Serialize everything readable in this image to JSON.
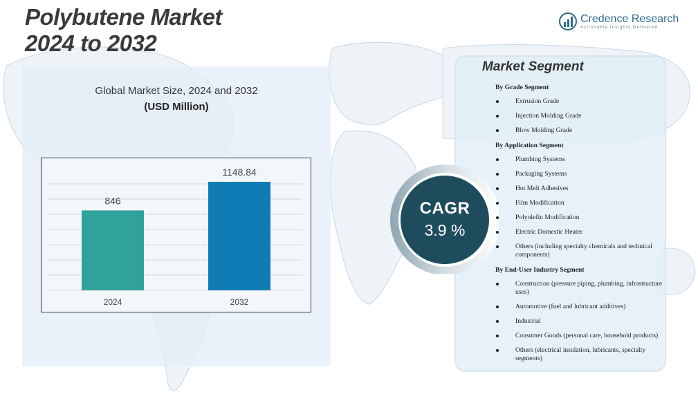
{
  "title": {
    "line1": "Polybutene Market",
    "line2": "2024 to 2032"
  },
  "brand": {
    "name": "Credence Research",
    "tagline": "Actionable Insights Delivered"
  },
  "chart_data": {
    "type": "bar",
    "title": "Global Market Size, 2024 and 2032",
    "subtitle": "(USD Million)",
    "categories": [
      "2024",
      "2032"
    ],
    "values": [
      846,
      1148.84
    ],
    "value_labels": [
      "846",
      "1148.84"
    ],
    "bar_colors": [
      "#2fa39b",
      "#0f7db5"
    ],
    "grid": true
  },
  "cagr": {
    "label": "CAGR",
    "value": "3.9 %"
  },
  "segments": {
    "title": "Market Segment",
    "groups": [
      {
        "heading": "By Grade Segment",
        "items": [
          "Extrusion Grade",
          "Injection Molding Grade",
          "Blow Molding Grade"
        ]
      },
      {
        "heading": "By Application Segment",
        "items": [
          "Plumbing Systems",
          "Packaging Systems",
          "Hot Melt Adhesives",
          "Film Modification",
          "Polyolefin Modification",
          "Electric Domestic Heater",
          "Others (including specialty chemicals and technical components)"
        ]
      },
      {
        "heading": "By End-User Industry Segment",
        "items": [
          "Construction (pressure piping, plumbing, infrastructure uses)",
          "Automotive (fuel and lubricant additives)",
          "Industrial",
          "Consumer Goods (personal care, household products)",
          "Others (electrical insulation, lubricants, specialty segments)"
        ]
      }
    ]
  },
  "colors": {
    "accent": "#1e4c5c",
    "bar_2024": "#2fa39b",
    "bar_2032": "#0f7db5"
  }
}
